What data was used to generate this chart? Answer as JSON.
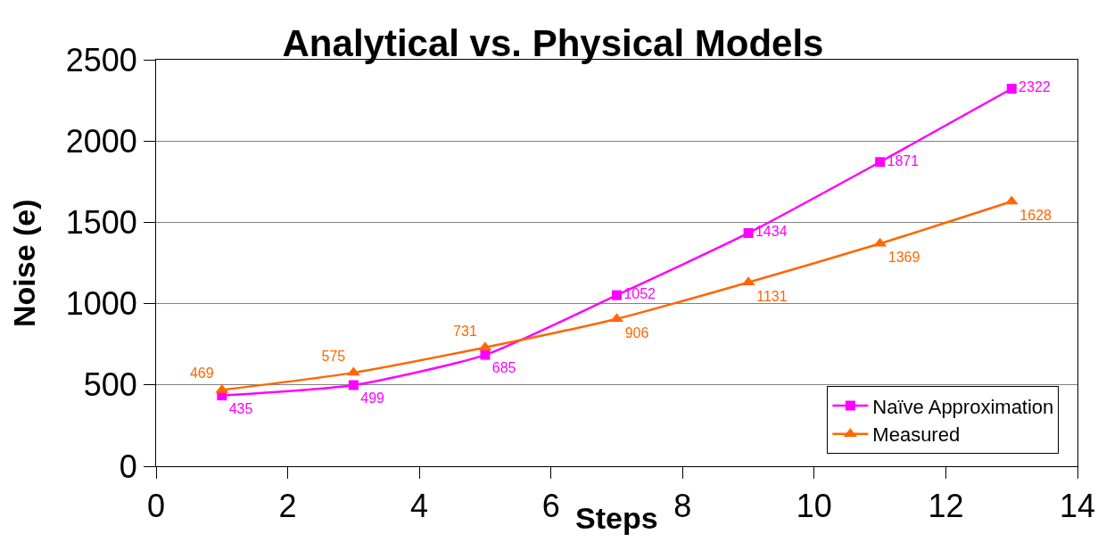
{
  "chart_data": {
    "type": "line",
    "title": "Analytical vs. Physical Models",
    "xlabel": "Steps",
    "ylabel": "Noise (e)",
    "x": [
      1,
      3,
      5,
      7,
      9,
      11,
      13
    ],
    "series": [
      {
        "name": "Naïve Approximation",
        "color": "#ff00ff",
        "marker": "square",
        "values": [
          435,
          499,
          685,
          1052,
          1434,
          1871,
          2322
        ]
      },
      {
        "name": "Measured",
        "color": "#ff6600",
        "marker": "triangle",
        "values": [
          469,
          575,
          731,
          906,
          1131,
          1369,
          1628
        ]
      }
    ],
    "xlim": [
      0,
      14
    ],
    "xticks": [
      0,
      2,
      4,
      6,
      8,
      10,
      12,
      14
    ],
    "ylim": [
      0,
      2500
    ],
    "yticks": [
      0,
      500,
      1000,
      1500,
      2000,
      2500
    ],
    "grid": "y",
    "legend": "bottom right",
    "data_labels": true,
    "line_style": "solid"
  }
}
